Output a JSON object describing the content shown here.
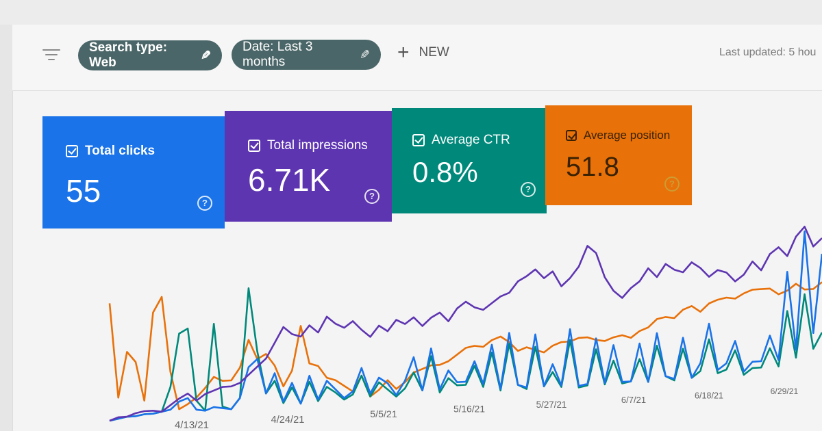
{
  "toolbar": {
    "search_type_chip": "Search type: Web",
    "date_chip": "Date: Last 3 months",
    "new_label": "NEW",
    "last_updated": "Last updated: 5 hou"
  },
  "metrics": [
    {
      "label": "Total clicks",
      "value": "55",
      "color": "#1a73e8"
    },
    {
      "label": "Total impressions",
      "value": "6.71K",
      "color": "#5e35b1"
    },
    {
      "label": "Average CTR",
      "value": "0.8%",
      "color": "#00897b"
    },
    {
      "label": "Average position",
      "value": "51.8",
      "color": "#e8710a"
    }
  ],
  "chart_data": {
    "type": "line",
    "x_tick_labels": [
      "4/13/21",
      "4/24/21",
      "5/5/21",
      "5/16/21",
      "5/27/21",
      "6/7/21",
      "6/18/21",
      "6/29/21"
    ],
    "grid": false,
    "series": [
      {
        "color": "#e8710a",
        "values": [
          0.78,
          0.15,
          0.45,
          0.38,
          0.12,
          0.7,
          0.8,
          0.3,
          0.05,
          0.08,
          0.12,
          0.18,
          0.25,
          0.22,
          0.22,
          0.3,
          0.48,
          0.35,
          0.38,
          0.3,
          0.16,
          0.26,
          0.55,
          0.3,
          0.28,
          0.2,
          0.18,
          0.14,
          0.1,
          0.2,
          0.06,
          0.1,
          0.16,
          0.1,
          0.14,
          0.2,
          0.22,
          0.24,
          0.24,
          0.26,
          0.3,
          0.34,
          0.35,
          0.34,
          0.38,
          0.4,
          0.36,
          0.3,
          0.32,
          0.3,
          0.28,
          0.32,
          0.34,
          0.34,
          0.36,
          0.36,
          0.34,
          0.33,
          0.35,
          0.36,
          0.34,
          0.38,
          0.4,
          0.45,
          0.46,
          0.45,
          0.5,
          0.52,
          0.48,
          0.53,
          0.55,
          0.56,
          0.55,
          0.58,
          0.6,
          0.6,
          0.6,
          0.56,
          0.58,
          0.62,
          0.58,
          0.58,
          0.62
        ]
      },
      {
        "color": "#00897b",
        "values": [
          0.0,
          0.01,
          0.02,
          0.02,
          0.03,
          0.03,
          0.04,
          0.2,
          0.55,
          0.58,
          0.1,
          0.03,
          0.6,
          0.05,
          0.03,
          0.1,
          0.82,
          0.4,
          0.12,
          0.2,
          0.05,
          0.15,
          0.04,
          0.18,
          0.05,
          0.14,
          0.1,
          0.05,
          0.08,
          0.2,
          0.06,
          0.15,
          0.1,
          0.05,
          0.1,
          0.2,
          0.08,
          0.3,
          0.06,
          0.15,
          0.1,
          0.1,
          0.22,
          0.08,
          0.3,
          0.05,
          0.35,
          0.08,
          0.05,
          0.32,
          0.06,
          0.15,
          0.05,
          0.35,
          0.04,
          0.05,
          0.28,
          0.05,
          0.2,
          0.05,
          0.06,
          0.2,
          0.05,
          0.28,
          0.08,
          0.05,
          0.25,
          0.06,
          0.1,
          0.3,
          0.08,
          0.1,
          0.22,
          0.06,
          0.1,
          0.1,
          0.22,
          0.1,
          0.45,
          0.15,
          0.55,
          0.2,
          0.3
        ]
      },
      {
        "color": "#1a73e8",
        "values": [
          0.0,
          0.01,
          0.02,
          0.02,
          0.03,
          0.03,
          0.04,
          0.05,
          0.1,
          0.12,
          0.04,
          0.03,
          0.05,
          0.04,
          0.03,
          0.1,
          0.3,
          0.35,
          0.12,
          0.25,
          0.06,
          0.18,
          0.04,
          0.22,
          0.06,
          0.18,
          0.12,
          0.06,
          0.1,
          0.25,
          0.08,
          0.18,
          0.14,
          0.06,
          0.15,
          0.3,
          0.08,
          0.35,
          0.08,
          0.2,
          0.12,
          0.12,
          0.25,
          0.1,
          0.35,
          0.06,
          0.42,
          0.08,
          0.06,
          0.4,
          0.06,
          0.2,
          0.06,
          0.42,
          0.05,
          0.06,
          0.35,
          0.06,
          0.3,
          0.06,
          0.06,
          0.3,
          0.05,
          0.36,
          0.08,
          0.06,
          0.32,
          0.06,
          0.15,
          0.4,
          0.1,
          0.14,
          0.28,
          0.08,
          0.14,
          0.14,
          0.3,
          0.14,
          0.7,
          0.2,
          0.95,
          0.3,
          0.8
        ]
      },
      {
        "color": "#5e35b1",
        "values": [
          0.0,
          0.02,
          0.02,
          0.04,
          0.05,
          0.05,
          0.04,
          0.08,
          0.12,
          0.15,
          0.1,
          0.14,
          0.16,
          0.18,
          0.18,
          0.2,
          0.25,
          0.3,
          0.35,
          0.45,
          0.55,
          0.5,
          0.48,
          0.55,
          0.5,
          0.6,
          0.55,
          0.52,
          0.56,
          0.5,
          0.45,
          0.52,
          0.48,
          0.55,
          0.52,
          0.56,
          0.5,
          0.55,
          0.58,
          0.52,
          0.6,
          0.64,
          0.6,
          0.58,
          0.62,
          0.66,
          0.68,
          0.75,
          0.78,
          0.82,
          0.76,
          0.8,
          0.7,
          0.75,
          0.82,
          0.95,
          0.9,
          0.74,
          0.65,
          0.6,
          0.66,
          0.7,
          0.78,
          0.72,
          0.8,
          0.76,
          0.74,
          0.8,
          0.76,
          0.7,
          0.74,
          0.72,
          0.66,
          0.7,
          0.78,
          0.72,
          0.82,
          0.86,
          0.8,
          0.92,
          0.98,
          0.85,
          0.9
        ]
      }
    ]
  }
}
